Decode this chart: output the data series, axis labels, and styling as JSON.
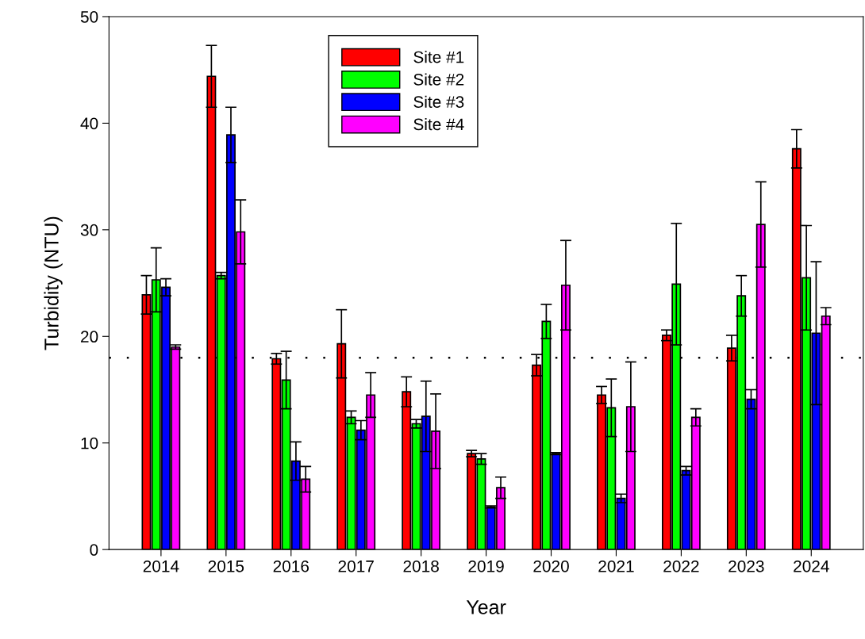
{
  "chart_data": {
    "type": "bar",
    "xlabel": "Year",
    "ylabel": "Turbidity (NTU)",
    "categories": [
      "2014",
      "2015",
      "2016",
      "2017",
      "2018",
      "2019",
      "2020",
      "2021",
      "2022",
      "2023",
      "2024"
    ],
    "series": [
      {
        "name": "Site #1",
        "color": "#ff0000",
        "values": [
          23.9,
          44.4,
          17.9,
          19.3,
          14.8,
          9.0,
          17.3,
          14.5,
          20.1,
          18.9,
          37.6
        ],
        "errors": [
          1.8,
          2.9,
          0.5,
          3.2,
          1.4,
          0.3,
          1.0,
          0.8,
          0.5,
          1.2,
          1.8
        ]
      },
      {
        "name": "Site #2",
        "color": "#00ff00",
        "values": [
          25.3,
          25.7,
          15.9,
          12.4,
          11.8,
          8.5,
          21.4,
          13.3,
          24.9,
          23.8,
          25.5
        ],
        "errors": [
          3.0,
          0.3,
          2.7,
          0.6,
          0.4,
          0.5,
          1.6,
          2.7,
          5.7,
          1.9,
          4.9
        ]
      },
      {
        "name": "Site #3",
        "color": "#0000ff",
        "values": [
          24.6,
          38.9,
          8.3,
          11.2,
          12.5,
          4.0,
          9.0,
          4.8,
          7.4,
          14.1,
          20.3
        ],
        "errors": [
          0.8,
          2.6,
          1.8,
          0.9,
          3.3,
          0.1,
          0.1,
          0.4,
          0.4,
          0.9,
          6.7
        ]
      },
      {
        "name": "Site #4",
        "color": "#ff00ff",
        "values": [
          19.0,
          29.8,
          6.6,
          14.5,
          11.1,
          5.8,
          24.8,
          13.4,
          12.4,
          30.5,
          21.9
        ],
        "errors": [
          0.2,
          3.0,
          1.2,
          2.1,
          3.5,
          1.0,
          4.2,
          4.2,
          0.8,
          4.0,
          0.8
        ]
      }
    ],
    "ylim": [
      0,
      50
    ],
    "yticks": [
      0,
      10,
      20,
      30,
      40,
      50
    ],
    "ref_lines": [
      {
        "axis": "y",
        "value": 18,
        "line_style": "dotted",
        "color": "#000000"
      }
    ],
    "legend": "top",
    "grid": false
  }
}
